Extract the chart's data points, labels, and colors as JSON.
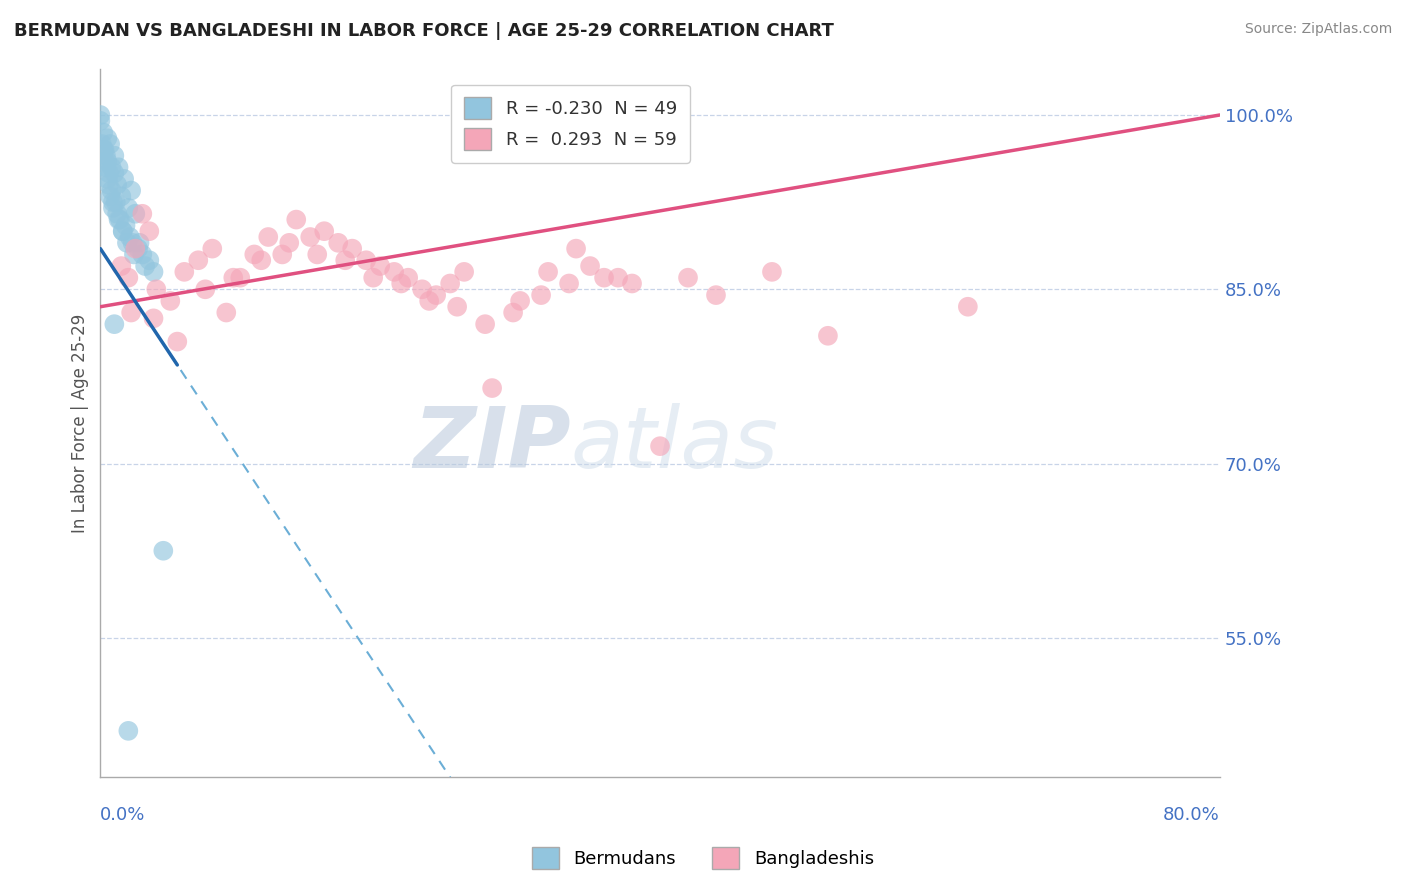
{
  "title": "BERMUDAN VS BANGLADESHI IN LABOR FORCE | AGE 25-29 CORRELATION CHART",
  "source": "Source: ZipAtlas.com",
  "ylabel": "In Labor Force | Age 25-29",
  "yticks": [
    55.0,
    70.0,
    85.0,
    100.0
  ],
  "ytick_labels": [
    "55.0%",
    "70.0%",
    "85.0%",
    "100.0%"
  ],
  "xmin": 0.0,
  "xmax": 80.0,
  "ymin": 43.0,
  "ymax": 104.0,
  "legend_r1": "R = -0.230",
  "legend_n1": "N = 49",
  "legend_r2": "R =  0.293",
  "legend_n2": "N = 59",
  "bermudan_color": "#92c5de",
  "bangladeshi_color": "#f4a6b8",
  "watermark_line1": "ZIP",
  "watermark_line2": "atlas",
  "blue_scatter_x": [
    0.0,
    0.0,
    0.3,
    0.5,
    0.5,
    0.7,
    0.8,
    1.0,
    1.0,
    1.2,
    1.3,
    1.5,
    1.7,
    2.0,
    2.2,
    2.5,
    0.2,
    0.4,
    0.6,
    0.8,
    1.1,
    1.4,
    1.8,
    2.1,
    2.8,
    3.0,
    3.5,
    0.1,
    0.3,
    0.5,
    0.7,
    0.9,
    1.2,
    1.6,
    2.3,
    2.7,
    3.2,
    0.2,
    0.4,
    0.6,
    0.9,
    1.3,
    1.6,
    1.9,
    2.4,
    3.8,
    1.0,
    4.5,
    2.0
  ],
  "blue_scatter_y": [
    100.0,
    99.5,
    97.0,
    98.0,
    96.0,
    97.5,
    95.5,
    96.5,
    95.0,
    94.0,
    95.5,
    93.0,
    94.5,
    92.0,
    93.5,
    91.5,
    98.5,
    96.5,
    95.0,
    93.5,
    92.5,
    91.0,
    90.5,
    89.5,
    89.0,
    88.0,
    87.5,
    97.5,
    96.0,
    94.5,
    93.0,
    92.0,
    91.5,
    90.0,
    89.0,
    88.5,
    87.0,
    97.0,
    95.5,
    94.0,
    92.5,
    91.0,
    90.0,
    89.0,
    88.0,
    86.5,
    82.0,
    62.5,
    47.0
  ],
  "pink_scatter_x": [
    1.5,
    2.0,
    2.5,
    3.0,
    3.5,
    4.0,
    5.0,
    6.0,
    7.0,
    8.0,
    9.0,
    10.0,
    11.0,
    12.0,
    13.0,
    14.0,
    15.0,
    16.0,
    17.0,
    18.0,
    19.0,
    20.0,
    21.0,
    22.0,
    23.0,
    24.0,
    25.0,
    26.0,
    28.0,
    30.0,
    32.0,
    34.0,
    35.0,
    36.0,
    38.0,
    40.0,
    42.0,
    44.0,
    48.0,
    52.0,
    62.0,
    2.2,
    3.8,
    5.5,
    7.5,
    9.5,
    11.5,
    13.5,
    15.5,
    17.5,
    19.5,
    21.5,
    23.5,
    25.5,
    27.5,
    29.5,
    31.5,
    33.5,
    37.0
  ],
  "pink_scatter_y": [
    87.0,
    86.0,
    88.5,
    91.5,
    90.0,
    85.0,
    84.0,
    86.5,
    87.5,
    88.5,
    83.0,
    86.0,
    88.0,
    89.5,
    88.0,
    91.0,
    89.5,
    90.0,
    89.0,
    88.5,
    87.5,
    87.0,
    86.5,
    86.0,
    85.0,
    84.5,
    85.5,
    86.5,
    76.5,
    84.0,
    86.5,
    88.5,
    87.0,
    86.0,
    85.5,
    71.5,
    86.0,
    84.5,
    86.5,
    81.0,
    83.5,
    83.0,
    82.5,
    80.5,
    85.0,
    86.0,
    87.5,
    89.0,
    88.0,
    87.5,
    86.0,
    85.5,
    84.0,
    83.5,
    82.0,
    83.0,
    84.5,
    85.5,
    86.0
  ],
  "pink_trendline_x0": 0.0,
  "pink_trendline_y0": 83.5,
  "pink_trendline_x1": 80.0,
  "pink_trendline_y1": 100.0,
  "blue_trendline_x0": 0.0,
  "blue_trendline_y0": 88.5,
  "blue_trendline_x1": 25.0,
  "blue_trendline_y1": 43.0,
  "blue_solid_x0": 0.0,
  "blue_solid_y0": 88.5,
  "blue_solid_x1": 5.0,
  "blue_solid_y1": 79.5
}
